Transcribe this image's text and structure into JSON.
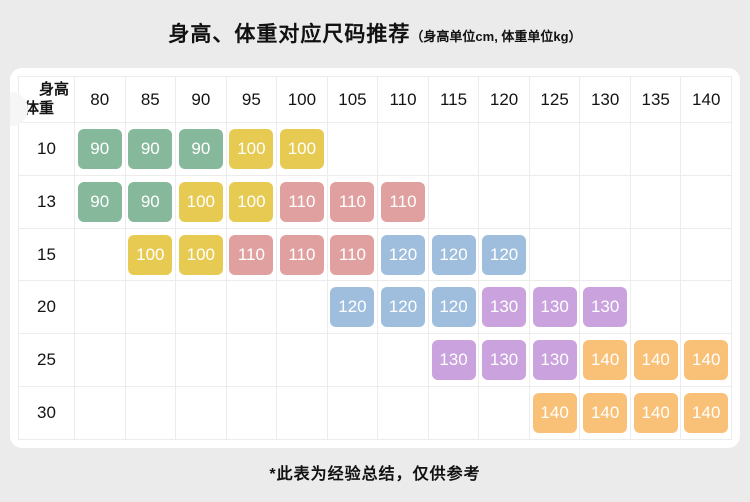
{
  "title": {
    "main": "身高、体重对应尺码推荐",
    "unit_note": "（身高单位cm, 体重单位kg）"
  },
  "chart_data": {
    "type": "table",
    "corner": {
      "top_label": "身高",
      "bottom_label": "体重"
    },
    "columns": [
      "80",
      "85",
      "90",
      "95",
      "100",
      "105",
      "110",
      "115",
      "120",
      "125",
      "130",
      "135",
      "140"
    ],
    "rows": [
      {
        "label": "10",
        "cells": [
          {
            "v": "90",
            "c": "green"
          },
          {
            "v": "90",
            "c": "green"
          },
          {
            "v": "90",
            "c": "green"
          },
          {
            "v": "100",
            "c": "yellow"
          },
          {
            "v": "100",
            "c": "yellow"
          },
          null,
          null,
          null,
          null,
          null,
          null,
          null,
          null
        ]
      },
      {
        "label": "13",
        "cells": [
          {
            "v": "90",
            "c": "green"
          },
          {
            "v": "90",
            "c": "green"
          },
          {
            "v": "100",
            "c": "yellow"
          },
          {
            "v": "100",
            "c": "yellow"
          },
          {
            "v": "110",
            "c": "pink"
          },
          {
            "v": "110",
            "c": "pink"
          },
          {
            "v": "110",
            "c": "pink"
          },
          null,
          null,
          null,
          null,
          null,
          null
        ]
      },
      {
        "label": "15",
        "cells": [
          null,
          {
            "v": "100",
            "c": "yellow"
          },
          {
            "v": "100",
            "c": "yellow"
          },
          {
            "v": "110",
            "c": "pink"
          },
          {
            "v": "110",
            "c": "pink"
          },
          {
            "v": "110",
            "c": "pink"
          },
          {
            "v": "120",
            "c": "blue"
          },
          {
            "v": "120",
            "c": "blue"
          },
          {
            "v": "120",
            "c": "blue"
          },
          null,
          null,
          null,
          null
        ]
      },
      {
        "label": "20",
        "cells": [
          null,
          null,
          null,
          null,
          null,
          {
            "v": "120",
            "c": "blue"
          },
          {
            "v": "120",
            "c": "blue"
          },
          {
            "v": "120",
            "c": "blue"
          },
          {
            "v": "130",
            "c": "purple"
          },
          {
            "v": "130",
            "c": "purple"
          },
          {
            "v": "130",
            "c": "purple"
          },
          null,
          null
        ]
      },
      {
        "label": "25",
        "cells": [
          null,
          null,
          null,
          null,
          null,
          null,
          null,
          {
            "v": "130",
            "c": "purple"
          },
          {
            "v": "130",
            "c": "purple"
          },
          {
            "v": "130",
            "c": "purple"
          },
          {
            "v": "140",
            "c": "orange"
          },
          {
            "v": "140",
            "c": "orange"
          },
          {
            "v": "140",
            "c": "orange"
          }
        ]
      },
      {
        "label": "30",
        "cells": [
          null,
          null,
          null,
          null,
          null,
          null,
          null,
          null,
          null,
          {
            "v": "140",
            "c": "orange"
          },
          {
            "v": "140",
            "c": "orange"
          },
          {
            "v": "140",
            "c": "orange"
          },
          {
            "v": "140",
            "c": "orange"
          }
        ]
      }
    ],
    "colors": {
      "green": "#86b89b",
      "yellow": "#e7ca52",
      "pink": "#e0a0a0",
      "blue": "#9fbede",
      "purple": "#c9a2de",
      "orange": "#f9c177"
    }
  },
  "footer": {
    "note": "*此表为经验总结，仅供参考"
  }
}
